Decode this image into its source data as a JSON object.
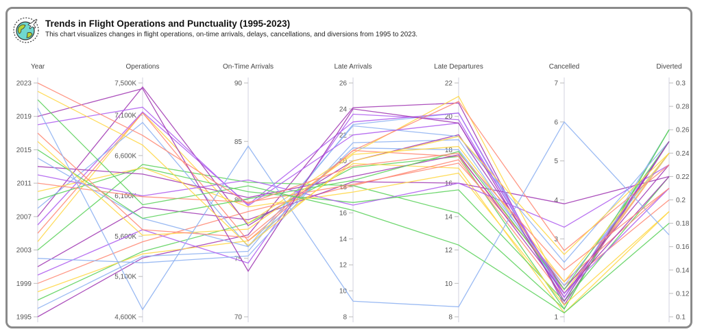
{
  "header": {
    "title": "Trends in Flight Operations and Punctuality (1995-2023)",
    "subtitle": "This chart visualizes changes in flight operations, on-time arrivals, delays, cancellations, and diversions from 1995 to 2023."
  },
  "chart_data": {
    "type": "parallel-coordinates",
    "title": "Trends in Flight Operations and Punctuality (1995-2023)",
    "axes": [
      {
        "key": "year",
        "label": "Year",
        "range": [
          1995,
          2023
        ],
        "ticks": [
          "1995",
          "1999",
          "2003",
          "2007",
          "2011",
          "2015",
          "2019",
          "2023"
        ]
      },
      {
        "key": "ops",
        "label": "Operations",
        "range": [
          4600,
          7500
        ],
        "ticks": [
          "4,600K",
          "5,100K",
          "5,600K",
          "6,100K",
          "6,600K",
          "7,100K",
          "7,500K"
        ],
        "tick_values": [
          4600,
          5100,
          5600,
          6100,
          6600,
          7100,
          7500
        ]
      },
      {
        "key": "ontime",
        "label": "On-Time Arrivals",
        "range": [
          70,
          90
        ],
        "ticks": [
          "70",
          "75",
          "80",
          "85",
          "90"
        ]
      },
      {
        "key": "latearr",
        "label": "Late Arrivals",
        "range": [
          8,
          26
        ],
        "ticks": [
          "8",
          "10",
          "12",
          "14",
          "16",
          "18",
          "20",
          "22",
          "24",
          "26"
        ]
      },
      {
        "key": "latedep",
        "label": "Late Departures",
        "range": [
          8,
          22
        ],
        "ticks": [
          "8",
          "10",
          "12",
          "14",
          "16",
          "18",
          "20",
          "22"
        ]
      },
      {
        "key": "canc",
        "label": "Cancelled",
        "range": [
          1,
          7
        ],
        "ticks": [
          "1",
          "3",
          "4",
          "5",
          "6",
          "7"
        ],
        "tick_values": [
          1,
          3,
          4,
          5,
          6,
          7
        ]
      },
      {
        "key": "div",
        "label": "Diverted",
        "range": [
          0.1,
          0.3
        ],
        "ticks": [
          "0.1",
          "0.12",
          "0.14",
          "0.16",
          "0.18",
          "0.2",
          "0.22",
          "0.24",
          "0.26",
          "0.28",
          "0.3"
        ]
      }
    ],
    "colors": [
      "#a33db5",
      "#8fb3f2",
      "#5fd35f",
      "#ffd84a",
      "#ff8c78",
      "#b062ef"
    ],
    "rows": [
      [
        1995,
        5330,
        77.0,
        24.1,
        20.8,
        1.3,
        0.25
      ],
      [
        1996,
        5350,
        75.6,
        22.8,
        20.2,
        1.4,
        0.26
      ],
      [
        1997,
        5410,
        78.0,
        19.5,
        17.6,
        1.2,
        0.26
      ],
      [
        1998,
        5380,
        76.5,
        19.8,
        16.9,
        1.1,
        0.19
      ],
      [
        1999,
        5530,
        79.0,
        18.1,
        17.4,
        1.5,
        0.24
      ],
      [
        2000,
        5680,
        74.6,
        23.6,
        19.8,
        1.5,
        0.25
      ],
      [
        2001,
        5960,
        78.3,
        18.4,
        16.0,
        3.9,
        0.22
      ],
      [
        2002,
        5270,
        75.2,
        21.4,
        18.6,
        1.6,
        0.24
      ],
      [
        2003,
        6490,
        81.5,
        18.1,
        14.2,
        1.2,
        0.26
      ],
      [
        2004,
        7130,
        78.0,
        20.6,
        21.2,
        1.6,
        0.24
      ],
      [
        2005,
        7130,
        76.5,
        20.8,
        17.6,
        1.8,
        0.2
      ],
      [
        2006,
        7140,
        79.6,
        23.0,
        20.2,
        1.5,
        0.25
      ],
      [
        2007,
        7450,
        77.8,
        20.0,
        18.9,
        1.7,
        0.23
      ],
      [
        2008,
        7010,
        76.0,
        22.7,
        18.8,
        2.4,
        0.25
      ],
      [
        2009,
        6450,
        80.7,
        16.8,
        15.6,
        1.4,
        0.22
      ],
      [
        2010,
        6450,
        79.4,
        17.6,
        16.6,
        1.3,
        0.19
      ],
      [
        2011,
        6090,
        79.8,
        18.2,
        17.2,
        1.9,
        0.21
      ],
      [
        2012,
        6100,
        81.7,
        16.6,
        16.0,
        3.3,
        0.23
      ],
      [
        2013,
        6370,
        80.2,
        18.8,
        17.7,
        1.6,
        0.22
      ],
      [
        2014,
        5820,
        76.0,
        21.0,
        18.0,
        1.8,
        0.24
      ],
      [
        2015,
        5820,
        80.1,
        18.5,
        17.9,
        1.7,
        0.25
      ],
      [
        2016,
        5610,
        77.5,
        20.5,
        18.2,
        1.9,
        0.24
      ],
      [
        2017,
        5680,
        76.8,
        20.8,
        20.9,
        2.7,
        0.23
      ],
      [
        2018,
        7200,
        79.5,
        22.0,
        19.6,
        1.6,
        0.21
      ],
      [
        2019,
        7430,
        73.9,
        24.0,
        19.6,
        1.4,
        0.25
      ],
      [
        2020,
        4690,
        84.6,
        9.2,
        8.6,
        6.0,
        0.17
      ],
      [
        2021,
        5990,
        81.2,
        16.2,
        12.3,
        1.1,
        0.18
      ],
      [
        2022,
        6730,
        76.1,
        20.0,
        18.8,
        2.6,
        0.24
      ],
      [
        2023,
        6850,
        79.7,
        19.6,
        17.8,
        2.2,
        0.21
      ]
    ]
  }
}
